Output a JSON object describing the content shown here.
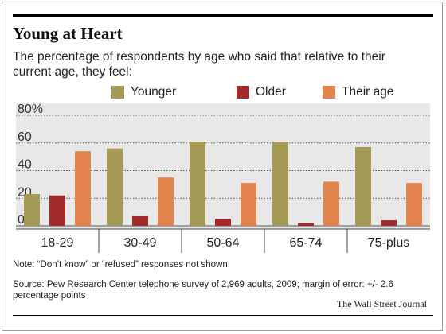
{
  "chart_data": {
    "type": "bar",
    "title": "Young at Heart",
    "subtitle": "The percentage of respondents by age who said that relative to their current age, they feel:",
    "categories": [
      "18-29",
      "30-49",
      "50-64",
      "65-74",
      "75-plus"
    ],
    "series": [
      {
        "name": "Younger",
        "color": "#a69a57",
        "values": [
          23,
          56,
          61,
          61,
          57
        ]
      },
      {
        "name": "Older",
        "color": "#a32a2a",
        "values": [
          22,
          7,
          5,
          2,
          4
        ]
      },
      {
        "name": "Their age",
        "color": "#e3834f",
        "values": [
          54,
          35,
          31,
          32,
          31
        ]
      }
    ],
    "yticks": [
      "80%",
      "60",
      "40",
      "20",
      "0"
    ],
    "ytick_values": [
      80,
      60,
      40,
      20,
      0
    ],
    "ylim": [
      0,
      80
    ],
    "grid": true,
    "legend_position": "top-right",
    "plot_background": "#e8e8e8"
  },
  "notes": {
    "note": "Note: “Don’t know” or “refused” responses not shown.",
    "source": "Source: Pew Research Center telephone survey of 2,969 adults, 2009; margin of error: +/- 2.6 percentage points",
    "credit": "The Wall Street Journal"
  }
}
